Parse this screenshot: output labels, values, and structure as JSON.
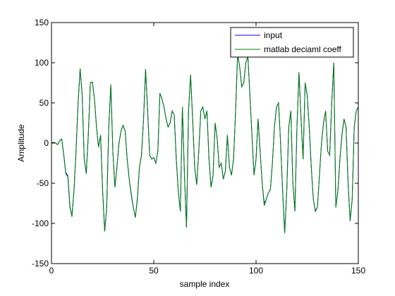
{
  "chart_data": {
    "type": "line",
    "xlabel": "sample index",
    "ylabel": "Amplitude",
    "x": [
      0,
      1,
      2,
      3,
      4,
      5,
      6,
      7,
      8,
      9,
      10,
      11,
      12,
      13,
      14,
      15,
      16,
      17,
      18,
      19,
      20,
      21,
      22,
      23,
      24,
      25,
      26,
      27,
      28,
      29,
      30,
      31,
      32,
      33,
      34,
      35,
      36,
      37,
      38,
      39,
      40,
      41,
      42,
      43,
      44,
      45,
      46,
      47,
      48,
      49,
      50,
      51,
      52,
      53,
      54,
      55,
      56,
      57,
      58,
      59,
      60,
      61,
      62,
      63,
      64,
      65,
      66,
      67,
      68,
      69,
      70,
      71,
      72,
      73,
      74,
      75,
      76,
      77,
      78,
      79,
      80,
      81,
      82,
      83,
      84,
      85,
      86,
      87,
      88,
      89,
      90,
      91,
      92,
      93,
      94,
      95,
      96,
      97,
      98,
      99,
      100,
      101,
      102,
      103,
      104,
      105,
      106,
      107,
      108,
      109,
      110,
      111,
      112,
      113,
      114,
      115,
      116,
      117,
      118,
      119,
      120,
      121,
      122,
      123,
      124,
      125,
      126,
      127,
      128,
      129,
      130,
      131,
      132,
      133,
      134,
      135,
      136,
      137,
      138,
      139,
      140,
      141,
      142,
      143,
      144,
      145,
      146,
      147,
      148,
      149,
      150
    ],
    "series": [
      {
        "name": "input",
        "color": "#0000ff",
        "values": [
          0,
          1,
          0,
          -2,
          3,
          5,
          -15,
          -38,
          -42,
          -80,
          -90,
          -60,
          -10,
          50,
          92,
          60,
          -20,
          -38,
          10,
          75,
          76,
          55,
          20,
          -5,
          10,
          -60,
          -110,
          -80,
          20,
          72,
          -10,
          -55,
          -30,
          0,
          15,
          22,
          15,
          -20,
          -45,
          -65,
          -80,
          -92,
          -70,
          -30,
          -15,
          30,
          92,
          40,
          -15,
          -20,
          -18,
          -25,
          -10,
          62,
          55,
          45,
          30,
          20,
          25,
          40,
          35,
          -20,
          -60,
          -85,
          45,
          -40,
          -105,
          40,
          85,
          30,
          -30,
          -52,
          -10,
          40,
          45,
          30,
          40,
          -20,
          -55,
          -40,
          25,
          5,
          -30,
          -25,
          -45,
          -35,
          10,
          -30,
          -40,
          -20,
          40,
          110,
          95,
          70,
          75,
          100,
          108,
          60,
          10,
          -40,
          -20,
          30,
          -10,
          -50,
          -75,
          -70,
          -62,
          -58,
          -25,
          20,
          45,
          50,
          0,
          -60,
          -112,
          -60,
          20,
          40,
          -50,
          -85,
          20,
          88,
          30,
          -20,
          75,
          60,
          20,
          -30,
          -70,
          -85,
          -80,
          -40,
          0,
          25,
          40,
          -10,
          -15,
          50,
          100,
          -80,
          -60,
          -20,
          10,
          30,
          20,
          -50,
          -97,
          -70,
          20,
          40,
          45
        ]
      },
      {
        "name": "matlab deciaml coeff",
        "color": "#008000",
        "values": [
          0,
          1,
          0,
          -2,
          3,
          5,
          -14,
          -37,
          -40,
          -78,
          -92,
          -58,
          -10,
          50,
          93,
          60,
          -20,
          -37,
          10,
          75,
          76,
          55,
          20,
          -5,
          10,
          -58,
          -110,
          -78,
          20,
          73,
          -10,
          -55,
          -30,
          0,
          15,
          22,
          15,
          -20,
          -45,
          -63,
          -80,
          -93,
          -68,
          -30,
          -15,
          30,
          92,
          40,
          -15,
          -20,
          -18,
          -25,
          -10,
          62,
          55,
          45,
          30,
          20,
          25,
          40,
          35,
          -20,
          -60,
          -85,
          45,
          -40,
          -105,
          40,
          85,
          30,
          -30,
          -52,
          -10,
          40,
          45,
          30,
          40,
          -20,
          -55,
          -40,
          25,
          5,
          -30,
          -25,
          -45,
          -35,
          10,
          -30,
          -40,
          -20,
          40,
          110,
          95,
          70,
          75,
          100,
          108,
          60,
          10,
          -40,
          -20,
          30,
          -10,
          -50,
          -78,
          -70,
          -62,
          -58,
          -25,
          20,
          45,
          50,
          0,
          -60,
          -112,
          -60,
          20,
          40,
          -50,
          -83,
          20,
          88,
          30,
          -20,
          75,
          60,
          20,
          -30,
          -70,
          -84,
          -80,
          -40,
          0,
          25,
          40,
          -10,
          -15,
          50,
          100,
          -80,
          -60,
          -20,
          10,
          30,
          20,
          -50,
          -97,
          -70,
          20,
          40,
          45
        ]
      }
    ],
    "xlim": [
      0,
      150
    ],
    "xticks": [
      0,
      50,
      100,
      150
    ],
    "ylim": [
      -150,
      150
    ],
    "yticks": [
      -150,
      -100,
      -50,
      0,
      50,
      100,
      150
    ],
    "legend": "upper right"
  }
}
